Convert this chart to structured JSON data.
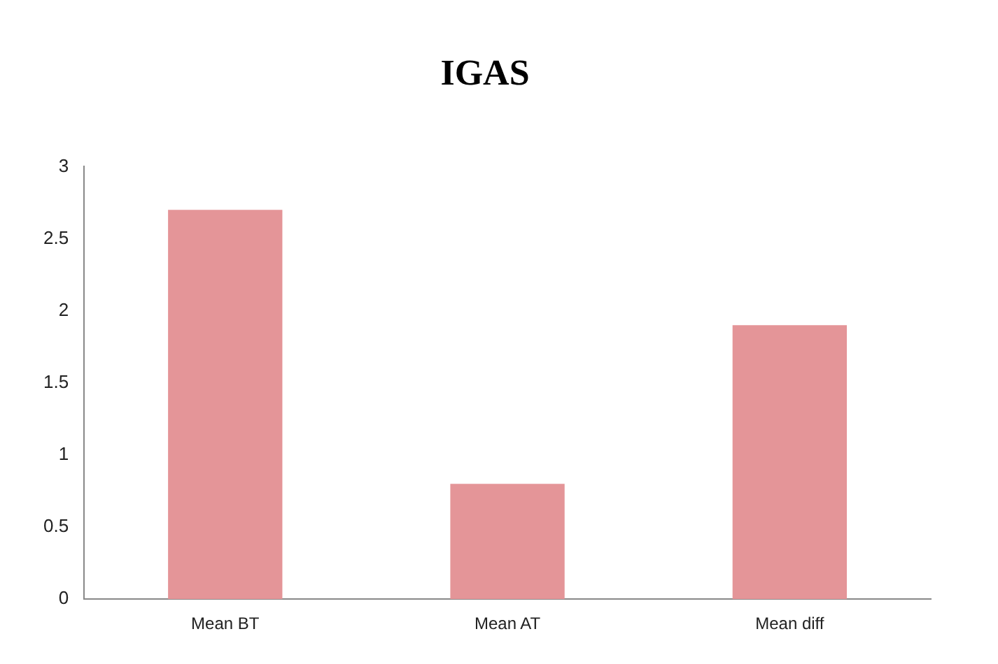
{
  "chart_data": {
    "type": "bar",
    "title": "IGAS",
    "categories": [
      "Mean BT",
      "Mean AT",
      "Mean diff"
    ],
    "values": [
      2.7,
      0.8,
      1.9
    ],
    "color": "#e49598",
    "ylim": [
      0,
      3
    ],
    "yticks": [
      0,
      0.5,
      1,
      1.5,
      2,
      2.5,
      3
    ],
    "grid": false,
    "legend": false
  }
}
